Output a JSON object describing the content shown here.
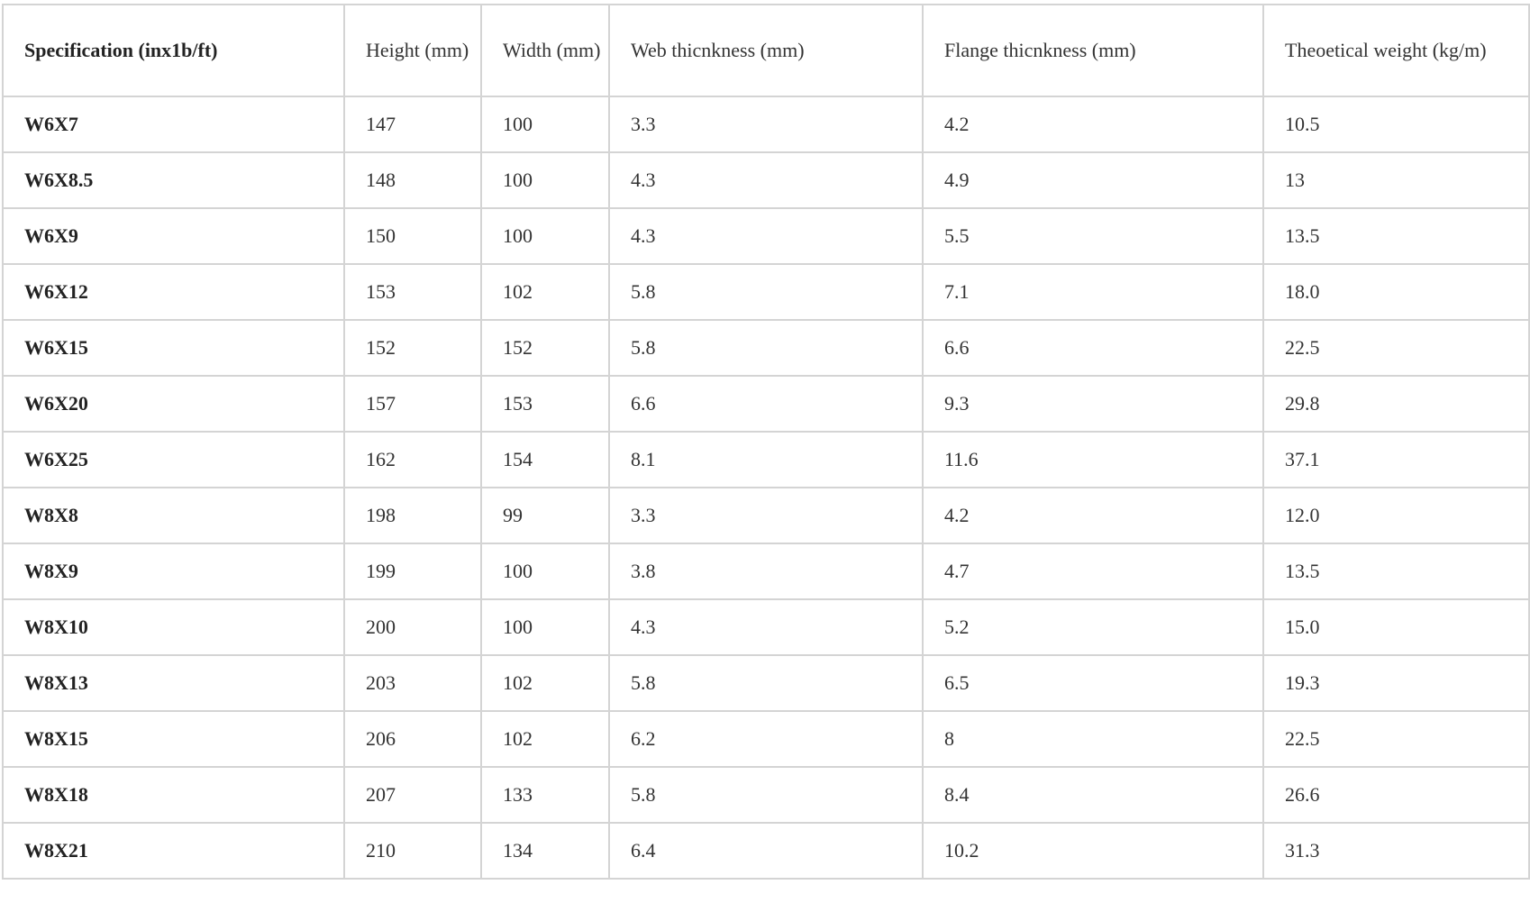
{
  "table": {
    "headers": [
      "Specification (inx1b/ft)",
      "Height (mm)",
      "Width (mm)",
      "Web thicnkness (mm)",
      "Flange thicnkness (mm)",
      "Theoetical weight (kg/m)"
    ],
    "rows": [
      [
        "W6X7",
        "147",
        "100",
        "3.3",
        "4.2",
        "10.5"
      ],
      [
        "W6X8.5",
        "148",
        "100",
        "4.3",
        "4.9",
        "13"
      ],
      [
        "W6X9",
        "150",
        "100",
        "4.3",
        "5.5",
        "13.5"
      ],
      [
        "W6X12",
        "153",
        "102",
        "5.8",
        "7.1",
        "18.0"
      ],
      [
        "W6X15",
        "152",
        "152",
        "5.8",
        "6.6",
        "22.5"
      ],
      [
        "W6X20",
        "157",
        "153",
        "6.6",
        "9.3",
        "29.8"
      ],
      [
        "W6X25",
        "162",
        "154",
        "8.1",
        "11.6",
        "37.1"
      ],
      [
        "W8X8",
        "198",
        "99",
        "3.3",
        "4.2",
        "12.0"
      ],
      [
        "W8X9",
        "199",
        "100",
        "3.8",
        "4.7",
        "13.5"
      ],
      [
        "W8X10",
        "200",
        "100",
        "4.3",
        "5.2",
        "15.0"
      ],
      [
        "W8X13",
        "203",
        "102",
        "5.8",
        "6.5",
        "19.3"
      ],
      [
        "W8X15",
        "206",
        "102",
        "6.2",
        "8",
        "22.5"
      ],
      [
        "W8X18",
        "207",
        "133",
        "5.8",
        "8.4",
        "26.6"
      ],
      [
        "W8X21",
        "210",
        "134",
        "6.4",
        "10.2",
        "31.3"
      ]
    ]
  }
}
